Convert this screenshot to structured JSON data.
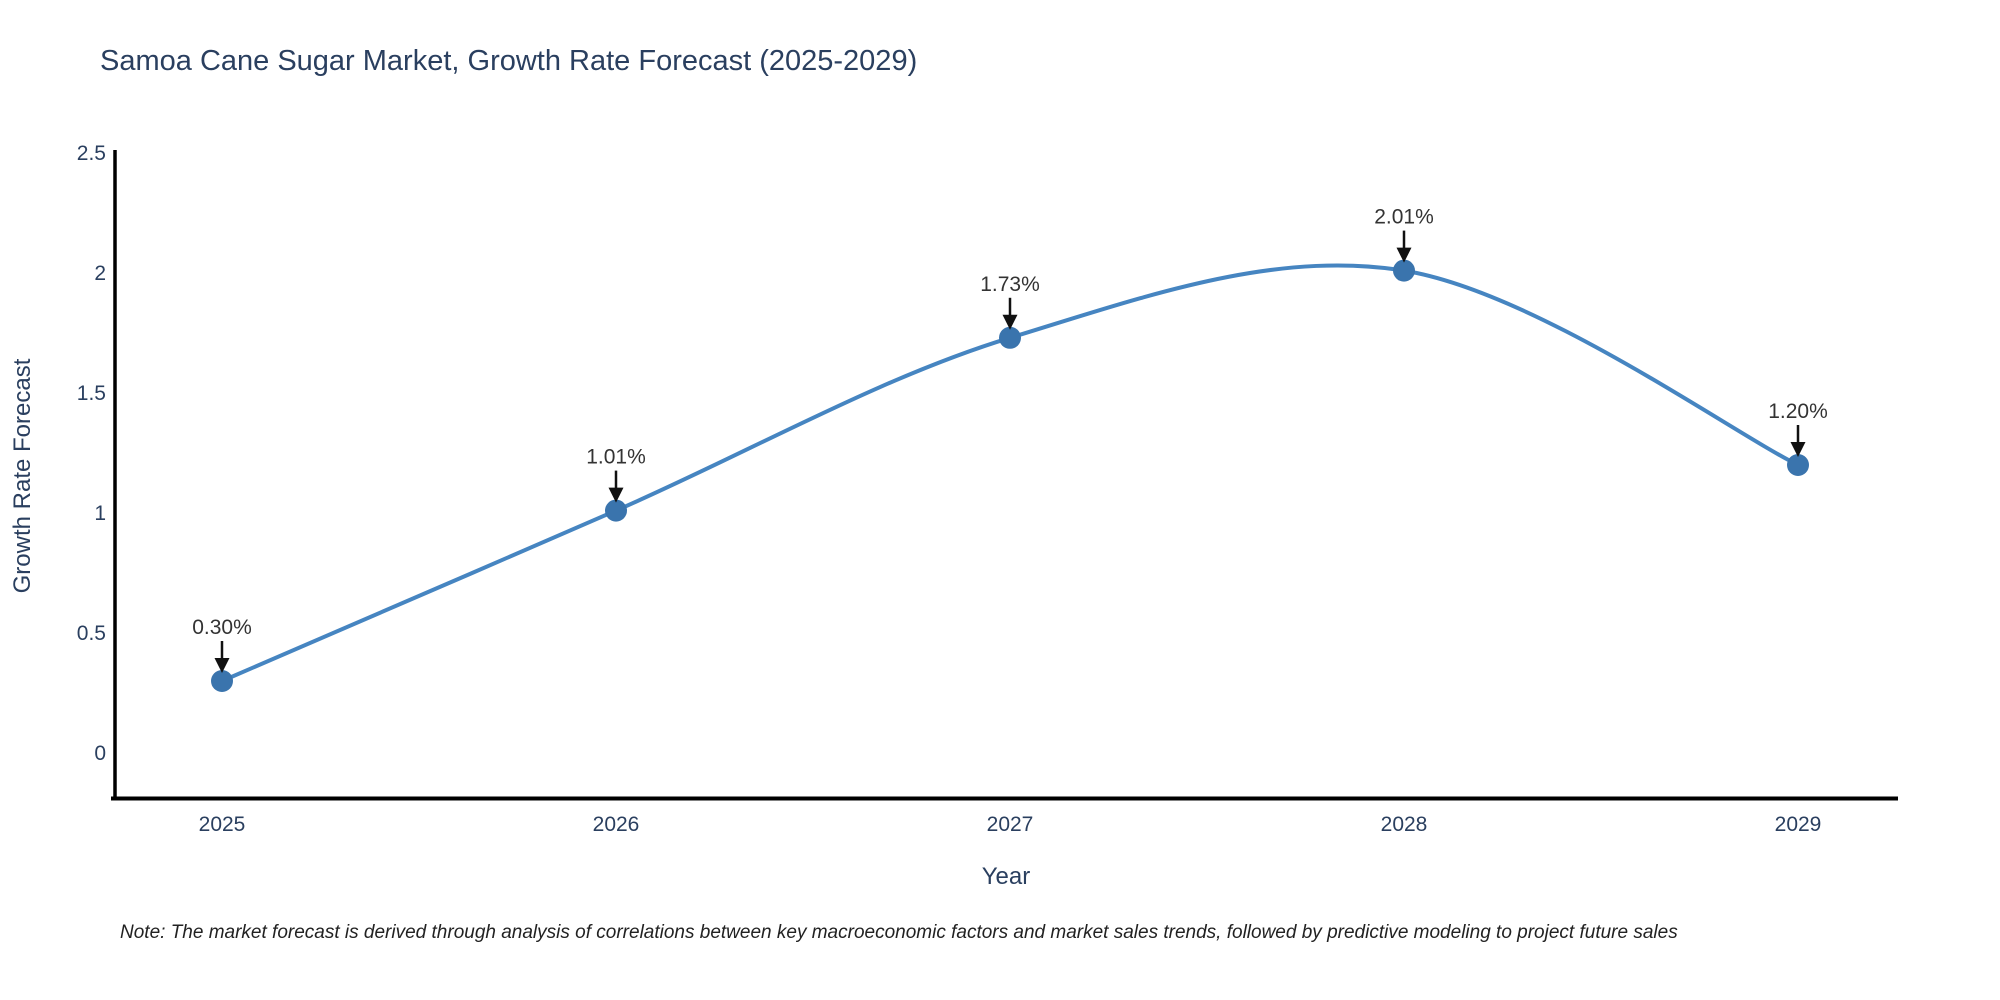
{
  "title": "Samoa Cane Sugar Market, Growth Rate Forecast (2025-2029)",
  "note": "Note: The market forecast is derived through analysis of correlations between key macroeconomic factors and market sales trends, followed by predictive modeling to project future sales",
  "chart_data": {
    "type": "line",
    "title": "Samoa Cane Sugar Market, Growth Rate Forecast (2025-2029)",
    "categories": [
      "2025",
      "2026",
      "2027",
      "2028",
      "2029"
    ],
    "series": [
      {
        "name": "Growth Rate Forecast",
        "values": [
          0.3,
          1.01,
          1.73,
          2.01,
          1.2
        ]
      }
    ],
    "point_labels": [
      "0.30%",
      "1.01%",
      "1.73%",
      "2.01%",
      "1.20%"
    ],
    "xlabel": "Year",
    "ylabel": "Growth Rate Forecast",
    "ylim": [
      0,
      2.5
    ],
    "yticks": [
      0,
      0.5,
      1,
      1.5,
      2,
      2.5
    ],
    "grid": false,
    "legend": "none",
    "curve": "spline",
    "line_color": "#4685c1",
    "marker_color": "#3a74ad",
    "axis_color": "#000000",
    "text_color": "#2a3f5f",
    "annotation_color": "#333333",
    "arrow_color": "#111111"
  }
}
